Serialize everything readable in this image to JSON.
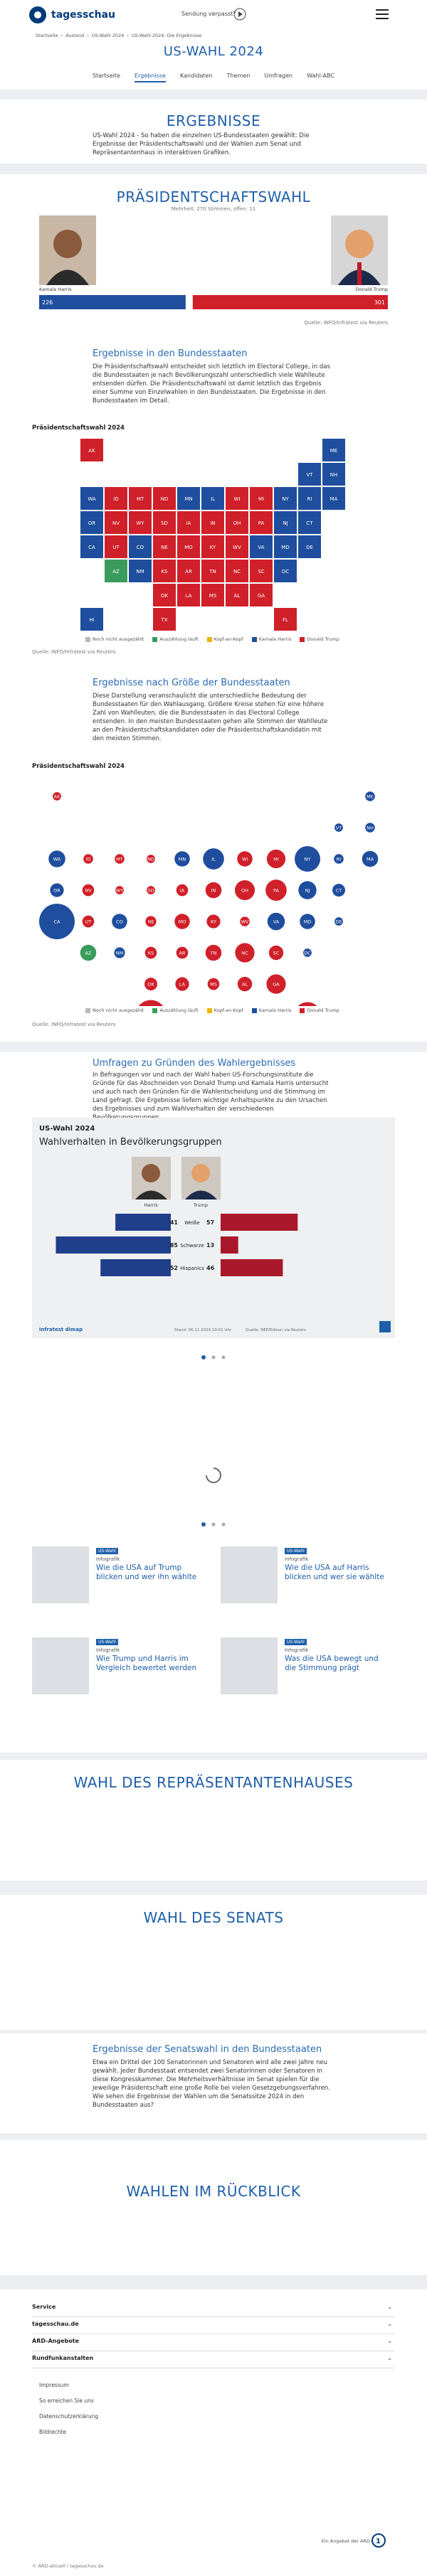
{
  "header": {
    "logo": "tagesschau",
    "missed": "Sendung verpasst?"
  },
  "breadcrumb": [
    "Startseite",
    "Ausland",
    "US-Wahl 2024",
    "US-Wahl 2024: Die Ergebnisse"
  ],
  "page_title": "US-WAHL 2024",
  "nav": [
    "Startseite",
    "Ergebnisse",
    "Kandidaten",
    "Themen",
    "Umfragen",
    "Wahl-ABC"
  ],
  "results": {
    "title": "ERGEBNISSE",
    "text": "US-Wahl 2024 - So haben die einzelnen US-Bundesstaaten gewählt: Die Ergebnisse der Präsidentschaftswahl und der Wahlen zum Senat und Repräsentantenhaus in interaktiven Grafiken."
  },
  "president": {
    "title": "PRÄSIDENTSCHAFTSWAHL",
    "subtitle": "Mehrheit: 270 Stimmen, offen: 11",
    "candidates": [
      {
        "name": "Kamala Harris",
        "votes": 226,
        "color": "#1f4e9e"
      },
      {
        "name": "Donald Trump",
        "votes": 301,
        "color": "#d0202a"
      }
    ],
    "source": "Quelle: INFO/Infratest via Reuters"
  },
  "states_section": {
    "title": "Ergebnisse in den Bundesstaaten",
    "text": "Die Präsidentschaftswahl entscheidet sich letztlich im Electoral College, in das die Bundesstaaten je nach Bevölkerungszahl unterschiedlich viele Wahlleute entsenden dürfen. Die Präsidentschaftswahl ist damit letztlich das Ergebnis einer Summe von Einzelwahlen in den Bundesstaaten. Die Ergebnisse in den Bundesstaaten im Detail."
  },
  "map": {
    "title": "Präsidentschaftswahl 2024",
    "states": [
      {
        "label": "AK",
        "color": "#d0202a",
        "votes": 3
      },
      {
        "label": "ME",
        "color": "#1f4e9e",
        "votes": 4
      },
      {
        "label": "VT",
        "color": "#1f4e9e",
        "votes": 3
      },
      {
        "label": "NH",
        "color": "#1f4e9e",
        "votes": 4
      },
      {
        "label": "WA",
        "color": "#1f4e9e",
        "votes": 12
      },
      {
        "label": "ID",
        "color": "#d0202a",
        "votes": 4
      },
      {
        "label": "MT",
        "color": "#d0202a",
        "votes": 4
      },
      {
        "label": "ND",
        "color": "#d0202a",
        "votes": 3
      },
      {
        "label": "MN",
        "color": "#1f4e9e",
        "votes": 10
      },
      {
        "label": "IL",
        "color": "#1f4e9e",
        "votes": 19
      },
      {
        "label": "WI",
        "color": "#d0202a",
        "votes": 10
      },
      {
        "label": "MI",
        "color": "#d0202a",
        "votes": 15
      },
      {
        "label": "NY",
        "color": "#1f4e9e",
        "votes": 28
      },
      {
        "label": "RI",
        "color": "#1f4e9e",
        "votes": 4
      },
      {
        "label": "MA",
        "color": "#1f4e9e",
        "votes": 11
      },
      {
        "label": "OR",
        "color": "#1f4e9e",
        "votes": 8
      },
      {
        "label": "NV",
        "color": "#d0202a",
        "votes": 6
      },
      {
        "label": "WY",
        "color": "#d0202a",
        "votes": 3
      },
      {
        "label": "SD",
        "color": "#d0202a",
        "votes": 3
      },
      {
        "label": "IA",
        "color": "#d0202a",
        "votes": 6
      },
      {
        "label": "IN",
        "color": "#d0202a",
        "votes": 11
      },
      {
        "label": "OH",
        "color": "#d0202a",
        "votes": 17
      },
      {
        "label": "PA",
        "color": "#d0202a",
        "votes": 19
      },
      {
        "label": "NJ",
        "color": "#1f4e9e",
        "votes": 14
      },
      {
        "label": "CT",
        "color": "#1f4e9e",
        "votes": 7
      },
      {
        "label": "CA",
        "color": "#1f4e9e",
        "votes": 54
      },
      {
        "label": "UT",
        "color": "#d0202a",
        "votes": 6
      },
      {
        "label": "CO",
        "color": "#1f4e9e",
        "votes": 10
      },
      {
        "label": "NE",
        "color": "#d0202a",
        "votes": 5
      },
      {
        "label": "MO",
        "color": "#d0202a",
        "votes": 10
      },
      {
        "label": "KY",
        "color": "#d0202a",
        "votes": 8
      },
      {
        "label": "WV",
        "color": "#d0202a",
        "votes": 4
      },
      {
        "label": "VA",
        "color": "#1f4e9e",
        "votes": 13
      },
      {
        "label": "MD",
        "color": "#1f4e9e",
        "votes": 10
      },
      {
        "label": "DE",
        "color": "#1f4e9e",
        "votes": 3
      },
      {
        "label": "AZ",
        "color": "#3a9b5c",
        "votes": 11
      },
      {
        "label": "NM",
        "color": "#1f4e9e",
        "votes": 5
      },
      {
        "label": "KS",
        "color": "#d0202a",
        "votes": 6
      },
      {
        "label": "AR",
        "color": "#d0202a",
        "votes": 6
      },
      {
        "label": "TN",
        "color": "#d0202a",
        "votes": 11
      },
      {
        "label": "NC",
        "color": "#d0202a",
        "votes": 16
      },
      {
        "label": "SC",
        "color": "#d0202a",
        "votes": 9
      },
      {
        "label": "DC",
        "color": "#1f4e9e",
        "votes": 3
      },
      {
        "label": "OK",
        "color": "#d0202a",
        "votes": 7
      },
      {
        "label": "LA",
        "color": "#d0202a",
        "votes": 8
      },
      {
        "label": "MS",
        "color": "#d0202a",
        "votes": 6
      },
      {
        "label": "AL",
        "color": "#d0202a",
        "votes": 9
      },
      {
        "label": "GA",
        "color": "#d0202a",
        "votes": 16
      },
      {
        "label": "HI",
        "color": "#1f4e9e",
        "votes": 4
      },
      {
        "label": "TX",
        "color": "#d0202a",
        "votes": 40
      },
      {
        "label": "FL",
        "color": "#d0202a",
        "votes": 30
      }
    ],
    "legend": [
      {
        "label": "Noch nicht ausgezählt",
        "color": "#b9b9b9"
      },
      {
        "label": "Auszählung läuft",
        "color": "#3a9b5c"
      },
      {
        "label": "Kopf-an-Kopf",
        "color": "#f0b400"
      },
      {
        "label": "Kamala Harris",
        "color": "#1f4e9e"
      },
      {
        "label": "Donald Trump",
        "color": "#d0202a"
      }
    ],
    "source": "Quelle: INFO/Infratest via Reuters"
  },
  "size_section": {
    "title": "Ergebnisse nach Größe der Bundesstaaten",
    "text": "Diese Darstellung veranschaulicht die unterschiedliche Bedeutung der Bundesstaaten für den Wahlausgang. Größere Kreise stehen für eine höhere Zahl von Wahlleuten, die die Bundesstaaten in das Electoral College entsenden. In den meisten Bundesstaaten gehen alle Stimmen der Wahlleute an den Präsidentschaftskandidaten oder die Präsidentschaftskandidatin mit den meisten Stimmen."
  },
  "polls": {
    "title": "Umfragen zu Gründen des Wahlergebnisses",
    "text": "In Befragungen vor und nach der Wahl haben US-Forschungsinstitute die Gründe für das Abschneiden von Donald Trump und Kamala Harris untersucht und auch nach den Gründen für die Wahlentscheidung und die Stimmung im Land gefragt. Die Ergebnisse liefern wichtige Anhaltspunkte zu den Ursachen des Ergebnisses und zum Wahlverhalten der verschiedenen Bevölkerungsgruppen.",
    "card": {
      "kicker": "US-Wahl 2024",
      "title": "Wahlverhalten in Bevölkerungsgruppen",
      "candidates": [
        "Harris",
        "Trump"
      ],
      "groups": [
        {
          "label": "Weiße",
          "values": [
            41,
            57
          ]
        },
        {
          "label": "Schwarze",
          "values": [
            85,
            13
          ]
        },
        {
          "label": "Hispanics",
          "values": [
            52,
            46
          ]
        }
      ],
      "brand": "infratest dimap",
      "date": "Stand: 06.11.2024 10:01 Uhr",
      "source": "Quelle: NEP/Edison via Reuters"
    }
  },
  "teasers": [
    {
      "topline": "US-Wahl",
      "kicker": "Infografik",
      "title": "Wie die USA auf Trump blicken und wer ihn wählte"
    },
    {
      "topline": "US-Wahl",
      "kicker": "Infografik",
      "title": "Wie die USA auf Harris blicken und wer sie wählte"
    },
    {
      "topline": "US-Wahl",
      "kicker": "Infografik",
      "title": "Wie Trump und Harris im Vergleich bewertet werden"
    },
    {
      "topline": "US-Wahl",
      "kicker": "Infografik",
      "title": "Was die USA bewegt und die Stimmung prägt"
    }
  ],
  "house": {
    "title": "WAHL DES REPRÄSENTANTENHAUSES"
  },
  "senate": {
    "title": "WAHL DES SENATS",
    "subtitle": "Ergebnisse der Senatswahl in den Bundesstaaten",
    "text": "Etwa ein Drittel der 100 Senatorinnen und Senatoren wird alle zwei Jahre neu gewählt. Jeder Bundesstaat entsendet zwei Senatorinnen oder Senatoren in diese Kongresskammer. Die Mehrheitsverhältnisse im Senat spielen für die jeweilige Präsidentschaft eine große Rolle bei vielen Gesetzgebungsverfahren. Wie sehen die Ergebnisse der Wahlen um die Senatssitze 2024 in den Bundesstaaten aus?"
  },
  "review": {
    "title": "WAHLEN IM RÜCKBLICK"
  },
  "footer": {
    "sections": [
      "Service",
      "tagesschau.de",
      "ARD-Angebote",
      "Rundfunkanstalten"
    ],
    "links": [
      "Impressum",
      "So erreichen Sie uns",
      "Datenschutzerklärung",
      "Bildrechte"
    ],
    "ard": "Ein Angebot der ARD",
    "copyright": "© ARD-aktuell / tagesschau.de"
  }
}
